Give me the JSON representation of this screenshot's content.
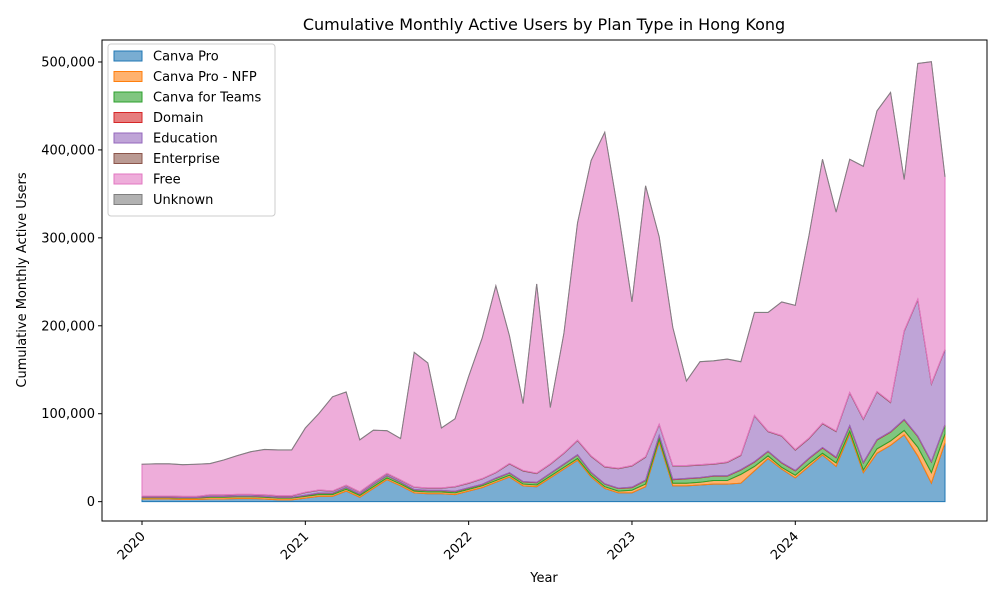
{
  "chart_data": {
    "type": "area",
    "stacked": true,
    "title": "Cumulative Monthly Active Users by Plan Type in Hong Kong",
    "xlabel": "Year",
    "ylabel": "Cumulative Monthly Active Users",
    "x": [
      "2020-01",
      "2020-02",
      "2020-03",
      "2020-04",
      "2020-05",
      "2020-06",
      "2020-07",
      "2020-08",
      "2020-09",
      "2020-10",
      "2020-11",
      "2020-12",
      "2021-01",
      "2021-02",
      "2021-03",
      "2021-04",
      "2021-05",
      "2021-06",
      "2021-07",
      "2021-08",
      "2021-09",
      "2021-10",
      "2021-11",
      "2021-12",
      "2022-01",
      "2022-02",
      "2022-03",
      "2022-04",
      "2022-05",
      "2022-06",
      "2022-07",
      "2022-08",
      "2022-09",
      "2022-10",
      "2022-11",
      "2022-12",
      "2023-01",
      "2023-02",
      "2023-03",
      "2023-04",
      "2023-05",
      "2023-06",
      "2023-07",
      "2023-08",
      "2023-09",
      "2023-10",
      "2023-11",
      "2023-12",
      "2024-01",
      "2024-02",
      "2024-03",
      "2024-04",
      "2024-05",
      "2024-06",
      "2024-07",
      "2024-08",
      "2024-09",
      "2024-10",
      "2024-11",
      "2024-12"
    ],
    "x_ticks": [
      "2020",
      "2021",
      "2022",
      "2023",
      "2024"
    ],
    "ylim": [
      -22000,
      525000
    ],
    "y_ticks": [
      0,
      100000,
      200000,
      300000,
      400000,
      500000
    ],
    "y_tick_labels": [
      "0",
      "100,000",
      "200,000",
      "300,000",
      "400,000",
      "500,000"
    ],
    "grid": false,
    "legend_position": "top-left",
    "series": [
      {
        "name": "Canva Pro",
        "color": "#1f77b4",
        "values": [
          3000,
          3000,
          3000,
          2500,
          2500,
          3000,
          3000,
          3500,
          3500,
          3000,
          2000,
          2000,
          4000,
          6000,
          6000,
          12000,
          5000,
          15000,
          25000,
          18000,
          10000,
          9000,
          9000,
          8000,
          12000,
          16000,
          22000,
          28000,
          18000,
          17000,
          27000,
          37000,
          47000,
          28000,
          15000,
          10000,
          10000,
          17000,
          68000,
          18000,
          18000,
          19000,
          20000,
          20000,
          21000,
          35000,
          49000,
          37000,
          27000,
          40000,
          53000,
          40000,
          77000,
          33000,
          55000,
          64000,
          76000,
          52000,
          21000,
          67000
        ]
      },
      {
        "name": "Canva Pro - NFP",
        "color": "#ff7f0e",
        "values": [
          1500,
          1500,
          1500,
          1500,
          1500,
          2000,
          2000,
          2000,
          2000,
          2000,
          2000,
          2000,
          2000,
          2000,
          2000,
          2000,
          2000,
          2000,
          2000,
          2000,
          2000,
          2000,
          2000,
          2000,
          2000,
          2000,
          2000,
          2000,
          2000,
          2000,
          2000,
          2000,
          2000,
          2000,
          2000,
          2000,
          3000,
          3000,
          3000,
          3000,
          3000,
          3000,
          4000,
          4000,
          10000,
          5000,
          3000,
          2000,
          3000,
          3000,
          2000,
          4000,
          3000,
          3000,
          5000,
          5000,
          5000,
          10000,
          12000,
          10000
        ]
      },
      {
        "name": "Canva for Teams",
        "color": "#2ca02c",
        "values": [
          500,
          500,
          500,
          500,
          500,
          800,
          800,
          800,
          800,
          800,
          800,
          800,
          1000,
          1500,
          1500,
          2000,
          1500,
          2500,
          2500,
          2000,
          1500,
          1500,
          1500,
          1500,
          1500,
          1500,
          2500,
          2500,
          2500,
          2500,
          3000,
          3500,
          4000,
          3000,
          3000,
          3000,
          3000,
          4000,
          4000,
          4000,
          5000,
          5000,
          5000,
          5000,
          5000,
          5000,
          5000,
          5000,
          5000,
          6000,
          6000,
          6000,
          6000,
          8000,
          10000,
          10000,
          12000,
          12000,
          12000,
          10000
        ]
      },
      {
        "name": "Domain",
        "color": "#d62728",
        "values": [
          200,
          200,
          200,
          200,
          200,
          200,
          200,
          200,
          200,
          200,
          200,
          200,
          300,
          300,
          300,
          300,
          300,
          300,
          300,
          300,
          300,
          300,
          300,
          300,
          300,
          300,
          400,
          400,
          400,
          400,
          400,
          400,
          400,
          400,
          400,
          400,
          500,
          500,
          500,
          500,
          500,
          500,
          500,
          500,
          500,
          500,
          500,
          500,
          500,
          500,
          600,
          600,
          600,
          600,
          600,
          600,
          600,
          600,
          600,
          600
        ]
      },
      {
        "name": "Education",
        "color": "#9467bd",
        "values": [
          1000,
          1000,
          1000,
          1000,
          1000,
          1500,
          1500,
          1500,
          1500,
          1500,
          1500,
          1500,
          3000,
          3000,
          2000,
          2000,
          2000,
          2000,
          2000,
          2000,
          2500,
          2500,
          2500,
          5000,
          5000,
          6000,
          6000,
          10000,
          12000,
          10000,
          10000,
          12000,
          16000,
          18000,
          19000,
          22000,
          24000,
          26000,
          12000,
          15000,
          14000,
          14000,
          13000,
          15000,
          16000,
          52000,
          22000,
          30000,
          23000,
          22000,
          27000,
          29000,
          37000,
          49000,
          54000,
          33000,
          100000,
          155000,
          88000,
          85000
        ]
      },
      {
        "name": "Enterprise",
        "color": "#8c564b",
        "values": [
          300,
          300,
          300,
          300,
          300,
          300,
          300,
          300,
          300,
          300,
          300,
          300,
          400,
          400,
          400,
          400,
          400,
          400,
          400,
          400,
          400,
          400,
          400,
          400,
          500,
          500,
          500,
          600,
          600,
          600,
          600,
          600,
          600,
          600,
          600,
          600,
          600,
          600,
          600,
          600,
          600,
          600,
          600,
          600,
          600,
          600,
          600,
          600,
          700,
          700,
          700,
          700,
          700,
          700,
          700,
          700,
          700,
          700,
          700,
          700
        ]
      },
      {
        "name": "Free",
        "color": "#e377c2",
        "values": [
          36000,
          36500,
          36500,
          36000,
          36500,
          35500,
          39500,
          44000,
          48500,
          51500,
          52000,
          52000,
          73000,
          87000,
          107000,
          106000,
          59000,
          59000,
          48500,
          47000,
          153000,
          142000,
          68000,
          77000,
          121000,
          160000,
          212000,
          145000,
          76000,
          215000,
          64000,
          136000,
          247000,
          336000,
          380000,
          290000,
          186000,
          308000,
          213000,
          157000,
          96000,
          117000,
          117000,
          117000,
          106000,
          117000,
          135000,
          152000,
          164000,
          230000,
          300000,
          249000,
          265000,
          287000,
          319000,
          352000,
          172000,
          268000,
          366000,
          196000
        ]
      },
      {
        "name": "Unknown",
        "color": "#7f7f7f",
        "values": [
          100,
          100,
          100,
          100,
          100,
          100,
          100,
          100,
          100,
          100,
          100,
          100,
          100,
          100,
          100,
          100,
          100,
          100,
          100,
          100,
          100,
          100,
          100,
          100,
          100,
          100,
          100,
          100,
          100,
          100,
          100,
          100,
          100,
          100,
          100,
          100,
          100,
          100,
          100,
          100,
          100,
          100,
          100,
          100,
          100,
          100,
          100,
          100,
          100,
          100,
          100,
          100,
          100,
          100,
          100,
          100,
          100,
          100,
          100,
          100
        ]
      }
    ]
  }
}
